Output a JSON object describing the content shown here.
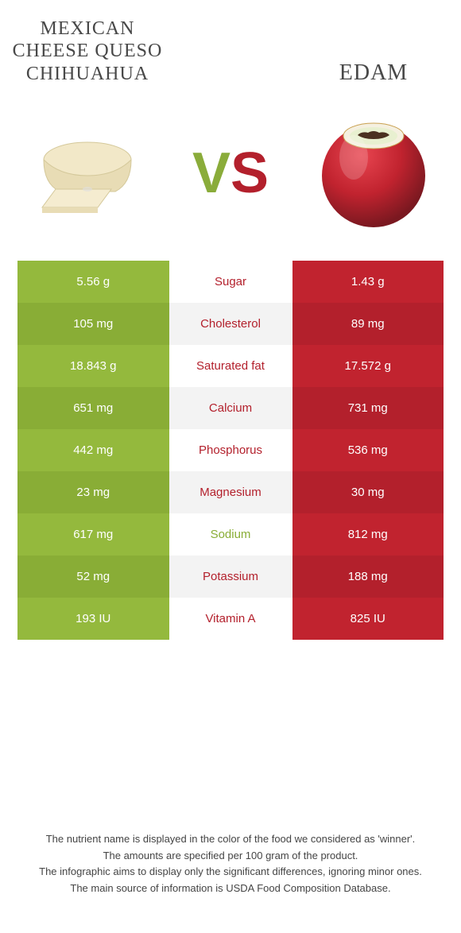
{
  "left": {
    "title": "MEXICAN CHEESE QUESO CHIHUAHUA",
    "color": "#89ad36"
  },
  "right": {
    "title": "EDAM",
    "color": "#b3202c"
  },
  "vs": {
    "v": "V",
    "s": "S"
  },
  "rows": [
    {
      "left": "5.56 g",
      "label": "Sugar",
      "right": "1.43 g",
      "winner": "red"
    },
    {
      "left": "105 mg",
      "label": "Cholesterol",
      "right": "89 mg",
      "winner": "red"
    },
    {
      "left": "18.843 g",
      "label": "Saturated fat",
      "right": "17.572 g",
      "winner": "red"
    },
    {
      "left": "651 mg",
      "label": "Calcium",
      "right": "731 mg",
      "winner": "red"
    },
    {
      "left": "442 mg",
      "label": "Phosphorus",
      "right": "536 mg",
      "winner": "red"
    },
    {
      "left": "23 mg",
      "label": "Magnesium",
      "right": "30 mg",
      "winner": "red"
    },
    {
      "left": "617 mg",
      "label": "Sodium",
      "right": "812 mg",
      "winner": "green"
    },
    {
      "left": "52 mg",
      "label": "Potassium",
      "right": "188 mg",
      "winner": "red"
    },
    {
      "left": "193 IU",
      "label": "Vitamin A",
      "right": "825 IU",
      "winner": "red"
    }
  ],
  "footer": {
    "l1": "The nutrient name is displayed in the color of the food we considered as 'winner'.",
    "l2": "The amounts are specified per 100 gram of the product.",
    "l3": "The infographic aims to display only the significant differences, ignoring minor ones.",
    "l4": "The main source of information is USDA Food Composition Database."
  }
}
